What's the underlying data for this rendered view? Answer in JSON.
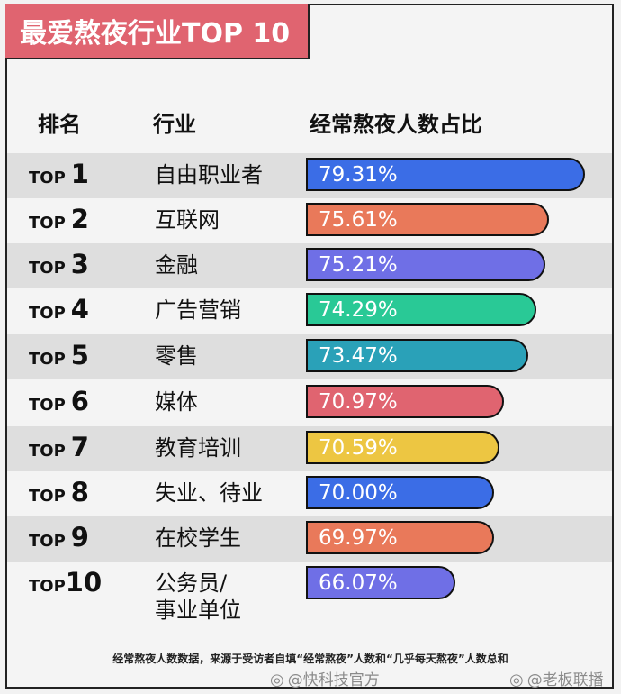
{
  "chart_data": {
    "type": "bar",
    "title": "最爱熬夜行业TOP 10",
    "headers": {
      "rank": "排名",
      "industry": "行业",
      "value": "经常熬夜人数占比"
    },
    "categories": [
      "自由职业者",
      "互联网",
      "金融",
      "广告营销",
      "零售",
      "媒体",
      "教育培训",
      "失业、待业",
      "在校学生",
      "公务员/\n事业单位"
    ],
    "ranks": [
      {
        "top": "TOP",
        "num": "1"
      },
      {
        "top": "TOP",
        "num": "2"
      },
      {
        "top": "TOP",
        "num": "3"
      },
      {
        "top": "TOP",
        "num": "4"
      },
      {
        "top": "TOP",
        "num": "5"
      },
      {
        "top": "TOP",
        "num": "6"
      },
      {
        "top": "TOP",
        "num": "7"
      },
      {
        "top": "TOP",
        "num": "8"
      },
      {
        "top": "TOP",
        "num": "9"
      },
      {
        "top": "TOP",
        "num": "10"
      }
    ],
    "values": [
      79.31,
      75.61,
      75.21,
      74.29,
      73.47,
      70.97,
      70.59,
      70.0,
      69.97,
      66.07
    ],
    "labels": [
      "79.31%",
      "75.61%",
      "75.21%",
      "74.29%",
      "73.47%",
      "70.97%",
      "70.59%",
      "70.00%",
      "69.97%",
      "66.07%"
    ],
    "colors": [
      "#3b6de6",
      "#e9795a",
      "#6f6fe6",
      "#29c996",
      "#2aa1b8",
      "#e06470",
      "#edc642",
      "#3b6de6",
      "#e9795a",
      "#6f6fe6"
    ],
    "footnote": "经常熬夜人数数据，来源于受访者自填“经常熬夜”人数和“几乎每天熬夜”人数总和"
  },
  "watermarks": [
    "@快科技官方",
    "@老板联播"
  ]
}
